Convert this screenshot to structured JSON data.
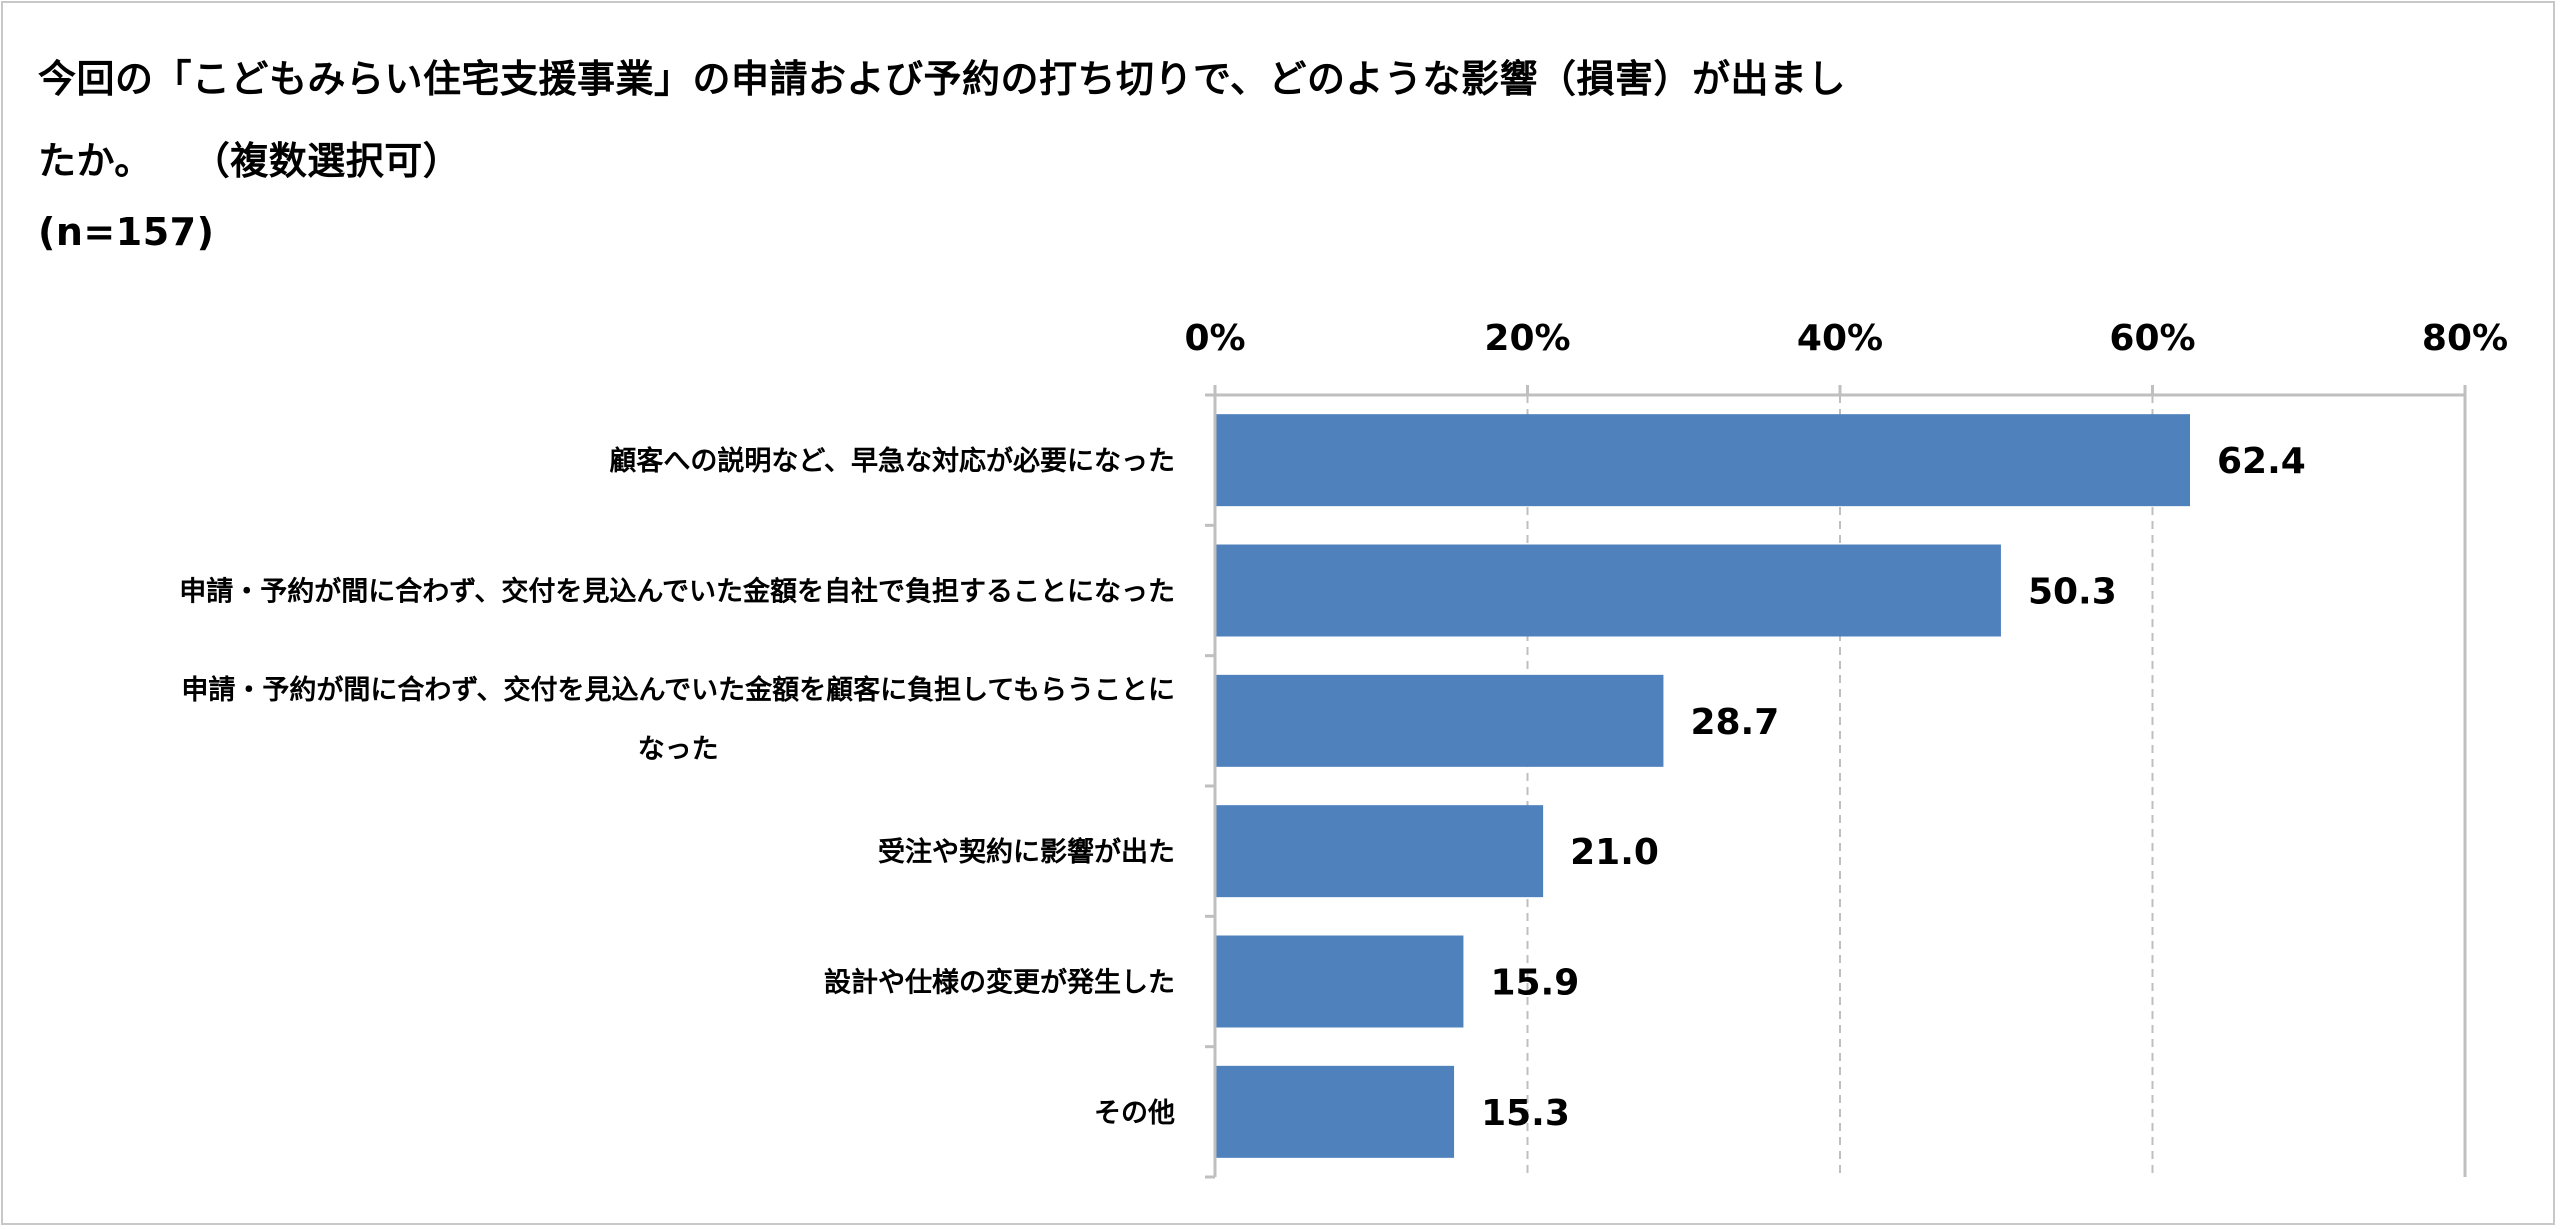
{
  "title": {
    "line1": "今回の「こどもみらい住宅支援事業」の申請および予約の打ち切りで、どのような影響（損害）が出まし",
    "line2": "たか。　　（複数選択可）",
    "sample_size": "(n=157)"
  },
  "chart_data": {
    "type": "bar",
    "orientation": "horizontal",
    "title": "今回の「こどもみらい住宅支援事業」の申請および予約の打ち切りで、どのような影響（損害）が出ましたか。　　（複数選択可）",
    "xlim": [
      0,
      80
    ],
    "xticks": [
      0,
      20,
      40,
      60,
      80
    ],
    "xtick_labels": [
      "0%",
      "20%",
      "40%",
      "60%",
      "80%"
    ],
    "grid": true,
    "categories": [
      [
        "顧客への説明など、早急な対応が必要になった"
      ],
      [
        "申請・予約が間に合わず、交付を見込んでいた金額を自社で負担することになった"
      ],
      [
        "申請・予約が間に合わず、交付を見込んでいた金額を顧客に負担してもらうことに",
        "なった"
      ],
      [
        "受注や契約に影響が出た"
      ],
      [
        "設計や仕様の変更が発生した"
      ],
      [
        "その他"
      ]
    ],
    "values": [
      62.4,
      50.3,
      28.7,
      21.0,
      15.9,
      15.3
    ],
    "value_labels": [
      "62.4",
      "50.3",
      "28.7",
      "21.0",
      "15.9",
      "15.3"
    ],
    "bar_color": "#4f81bd",
    "grid_color": "#bfbfbf",
    "axis_color": "#bfbfbf"
  }
}
